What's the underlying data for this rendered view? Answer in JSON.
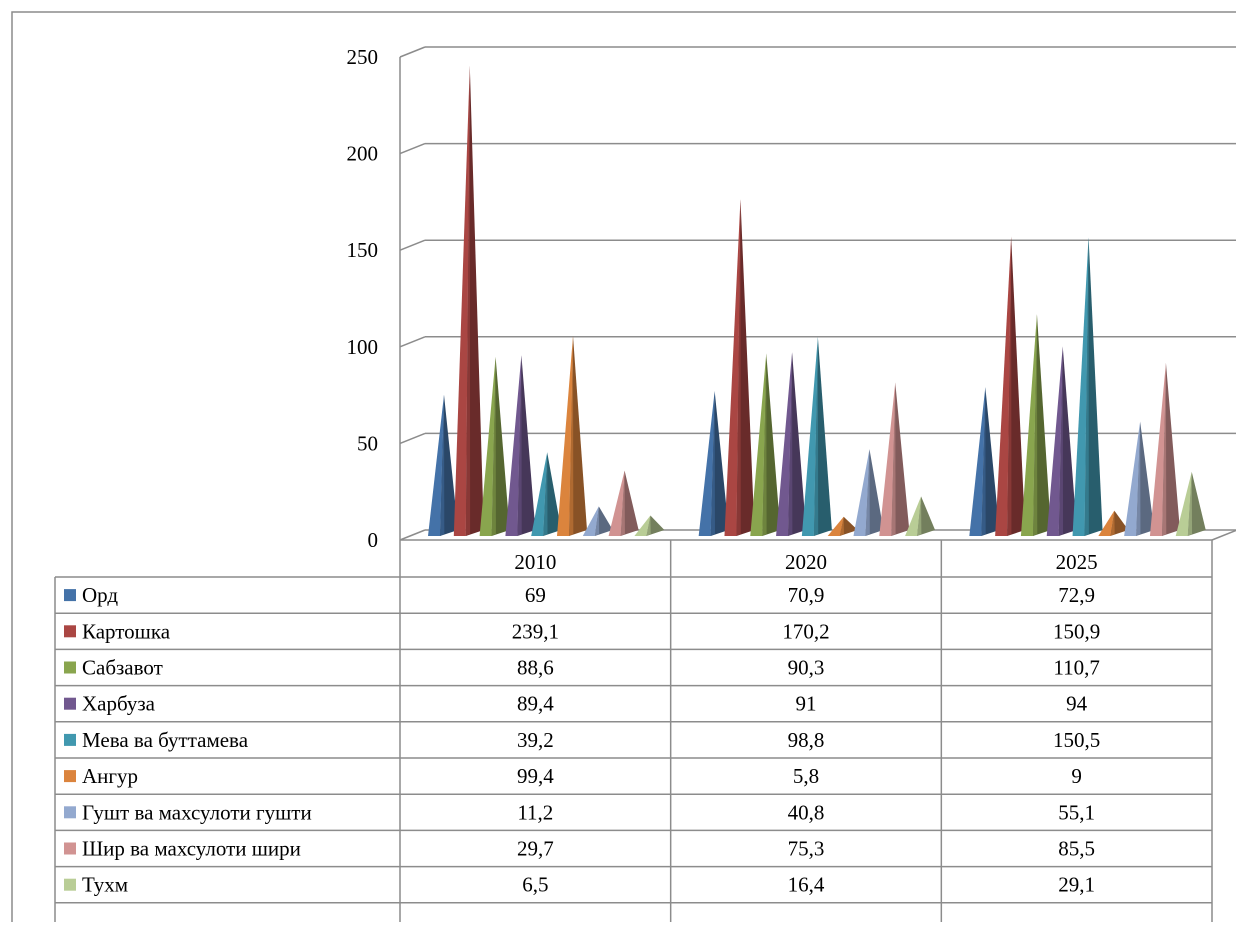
{
  "chart_data": {
    "type": "bar",
    "bar_shape": "pyramid",
    "projection": "3d",
    "categories": [
      "2010",
      "2020",
      "2025"
    ],
    "series": [
      {
        "name": "Орд",
        "color": "#4472A8",
        "values": [
          69,
          70.9,
          72.9
        ],
        "labels": [
          "69",
          "70,9",
          "72,9"
        ]
      },
      {
        "name": "Картошка",
        "color": "#AA4643",
        "values": [
          239.1,
          170.2,
          150.9
        ],
        "labels": [
          "239,1",
          "170,2",
          "150,9"
        ]
      },
      {
        "name": "Сабзавот",
        "color": "#89A54E",
        "values": [
          88.6,
          90.3,
          110.7
        ],
        "labels": [
          "88,6",
          "90,3",
          "110,7"
        ]
      },
      {
        "name": "Харбуза",
        "color": "#71588F",
        "values": [
          89.4,
          91,
          94
        ],
        "labels": [
          "89,4",
          "91",
          "94"
        ]
      },
      {
        "name": "Мева ва буттамева",
        "color": "#4198AF",
        "values": [
          39.2,
          98.8,
          150.5
        ],
        "labels": [
          "39,2",
          "98,8",
          "150,5"
        ]
      },
      {
        "name": "Ангур",
        "color": "#DB843D",
        "values": [
          99.4,
          5.8,
          9
        ],
        "labels": [
          "99,4",
          "5,8",
          "9"
        ]
      },
      {
        "name": "Гушт ва махсулоти гушти",
        "color": "#93A9CF",
        "values": [
          11.2,
          40.8,
          55.1
        ],
        "labels": [
          "11,2",
          "40,8",
          "55,1"
        ]
      },
      {
        "name": "Шир ва махсулоти шири",
        "color": "#D19392",
        "values": [
          29.7,
          75.3,
          85.5
        ],
        "labels": [
          "29,7",
          "75,3",
          "85,5"
        ]
      },
      {
        "name": "Тухм",
        "color": "#B9CD96",
        "values": [
          6.5,
          16.4,
          29.1
        ],
        "labels": [
          "6,5",
          "16,4",
          "29,1"
        ]
      }
    ],
    "ylim": [
      0,
      250
    ],
    "yticks": [
      "0",
      "50",
      "100",
      "150",
      "200",
      "250"
    ],
    "grid": true,
    "legend": "data-table-below"
  }
}
